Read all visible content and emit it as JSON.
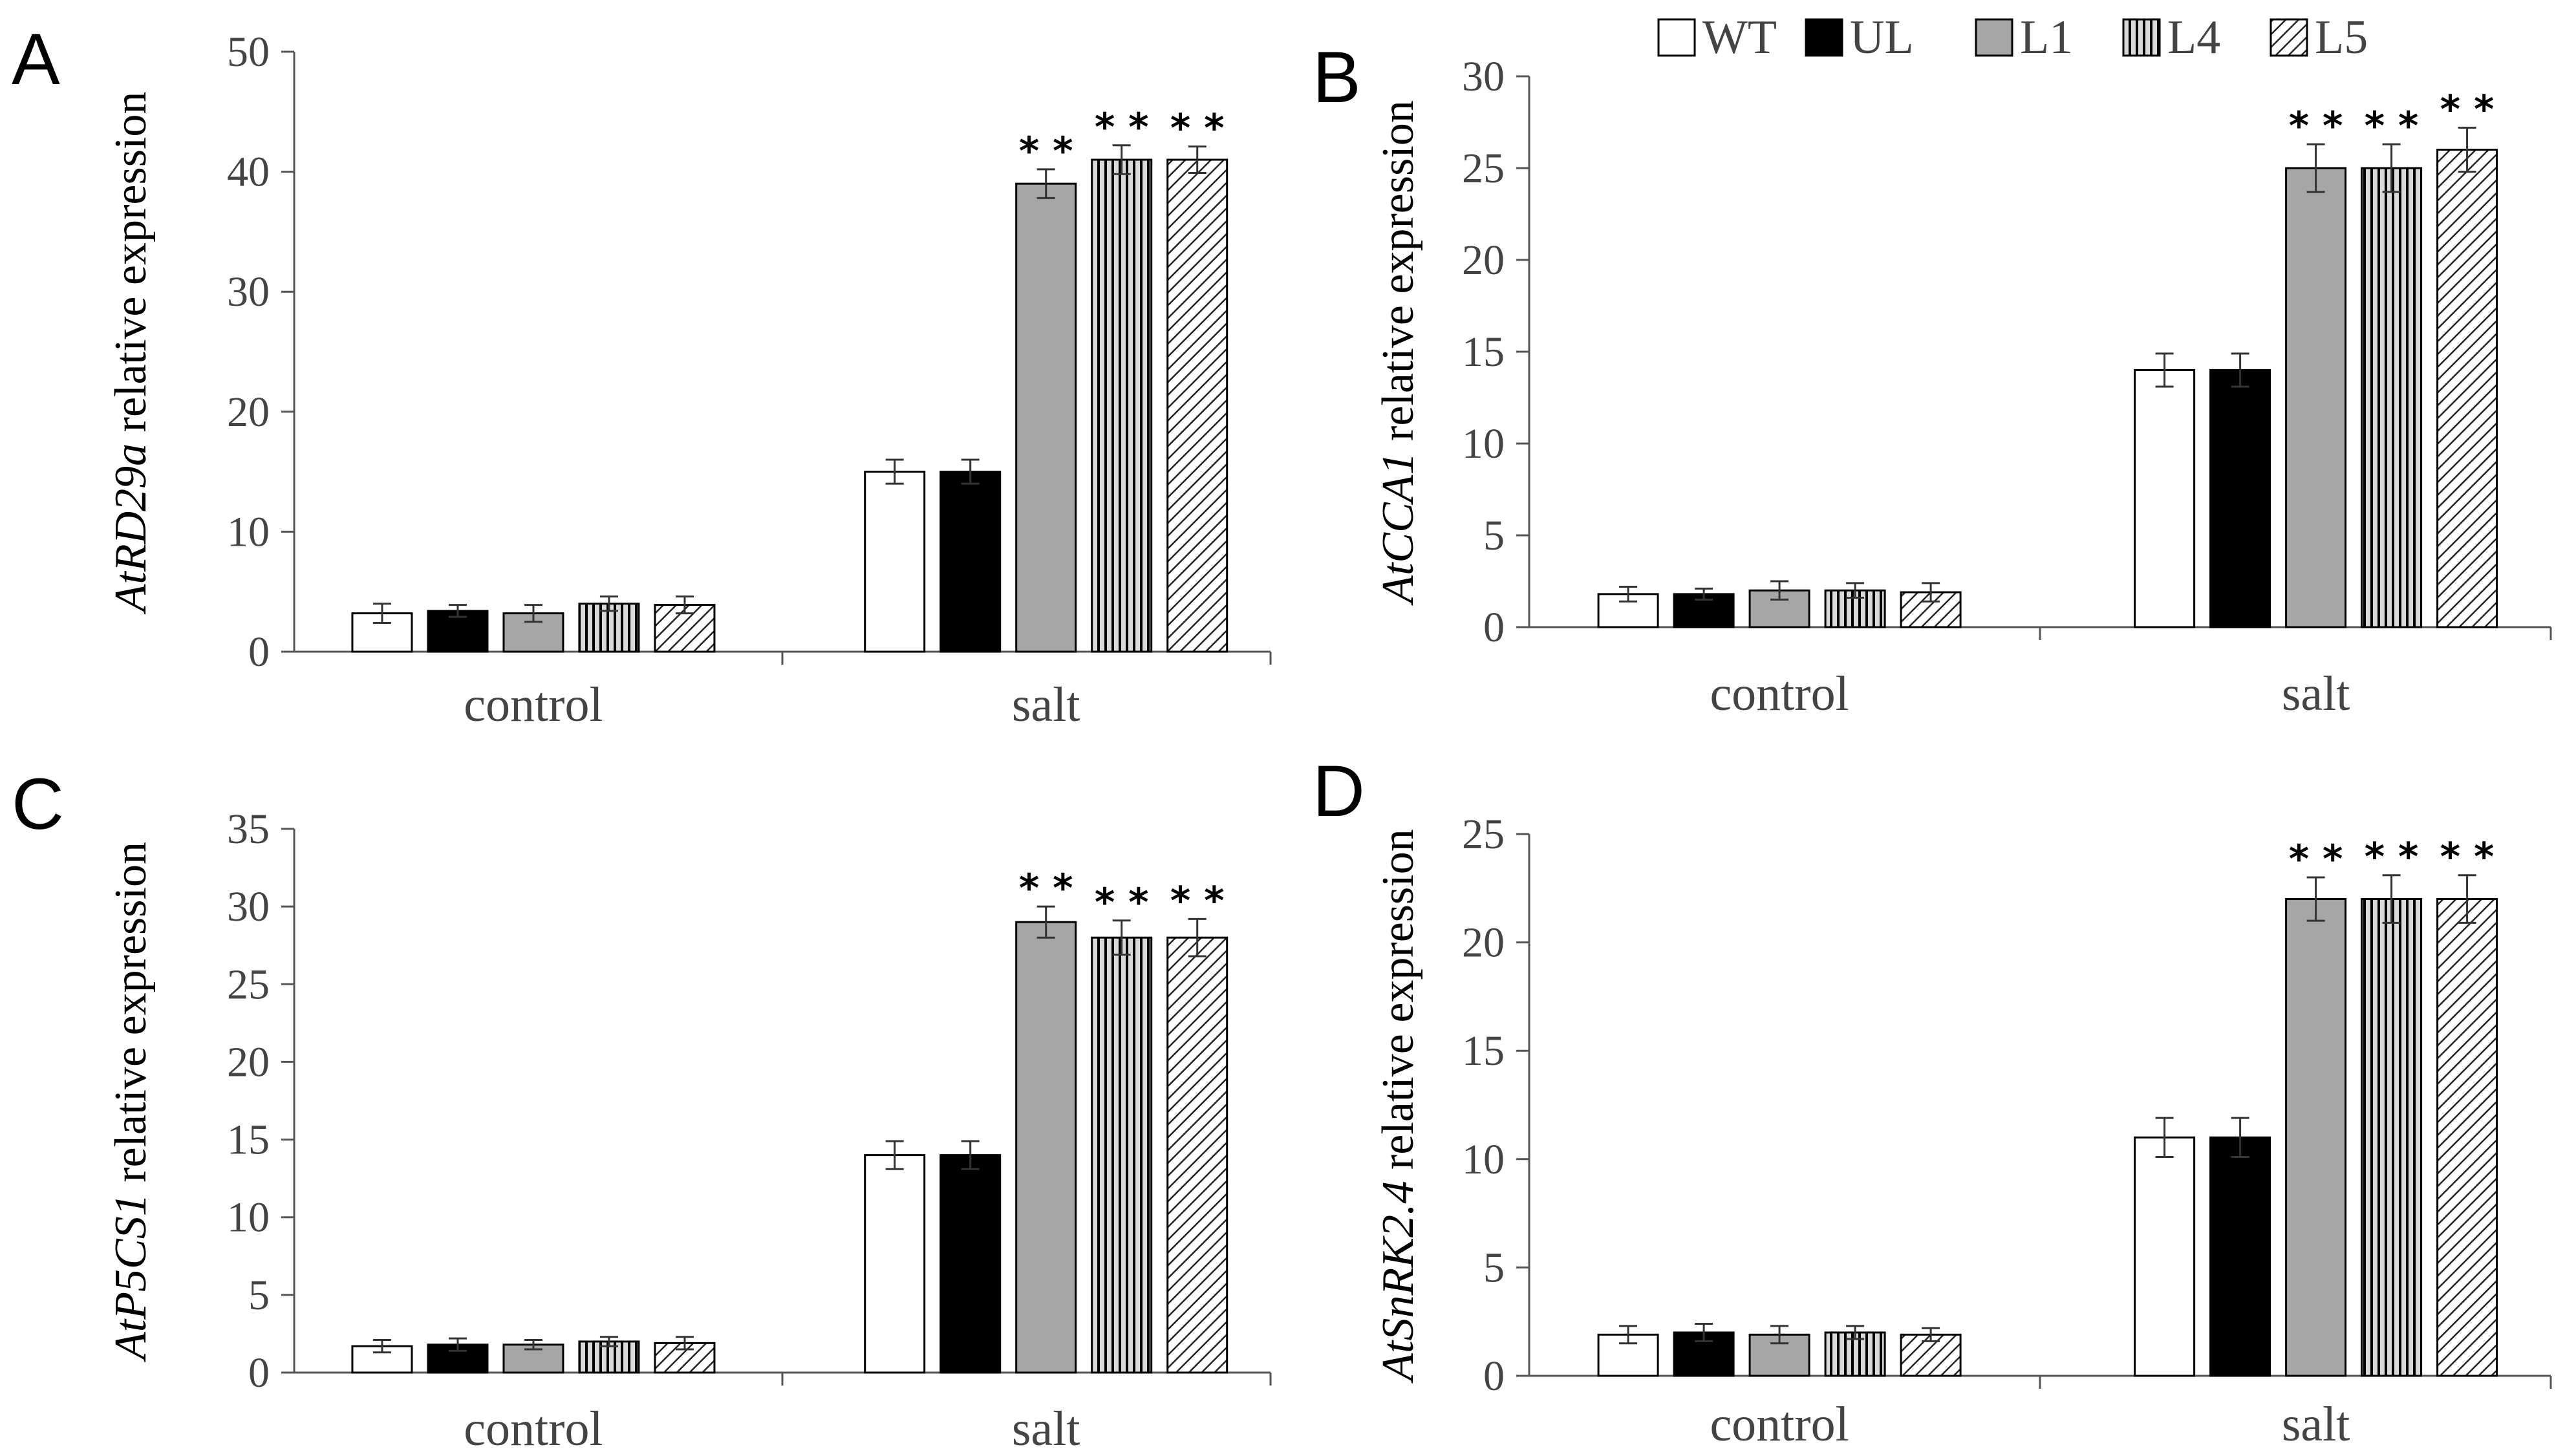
{
  "figure": {
    "legend": [
      {
        "name": "WT",
        "fill": "white"
      },
      {
        "name": "UL",
        "fill": "black"
      },
      {
        "name": "L1",
        "fill": "gray"
      },
      {
        "name": "L4",
        "fill": "vertical-lines"
      },
      {
        "name": "L5",
        "fill": "diagonal-lines"
      }
    ],
    "colors": {
      "white": "#ffffff",
      "black": "#000000",
      "gray": "#a6a6a6",
      "pattern_bg": "#d9d9d9",
      "axis": "#555555",
      "text": "#444444"
    }
  },
  "chart_data": [
    {
      "panel": "A",
      "type": "bar",
      "ylabel_italic": "AtRD29a",
      "ylabel_rest": " relative expression",
      "categories": [
        "control",
        "salt"
      ],
      "ylim": [
        0,
        50
      ],
      "yticks": [
        0,
        10,
        20,
        30,
        40,
        50
      ],
      "series": [
        {
          "name": "WT",
          "values": [
            3.2,
            15
          ],
          "errors": [
            0.8,
            1.0
          ],
          "sig": [
            "",
            ""
          ]
        },
        {
          "name": "UL",
          "values": [
            3.4,
            15
          ],
          "errors": [
            0.5,
            1.0
          ],
          "sig": [
            "",
            ""
          ]
        },
        {
          "name": "L1",
          "values": [
            3.2,
            39
          ],
          "errors": [
            0.7,
            1.2
          ],
          "sig": [
            "",
            "**"
          ]
        },
        {
          "name": "L4",
          "values": [
            4.0,
            41
          ],
          "errors": [
            0.6,
            1.2
          ],
          "sig": [
            "",
            "**"
          ]
        },
        {
          "name": "L5",
          "values": [
            3.9,
            41
          ],
          "errors": [
            0.7,
            1.1
          ],
          "sig": [
            "",
            "**"
          ]
        }
      ]
    },
    {
      "panel": "B",
      "type": "bar",
      "ylabel_italic": "AtCCA1",
      "ylabel_rest": " relative expression",
      "categories": [
        "control",
        "salt"
      ],
      "ylim": [
        0,
        30
      ],
      "yticks": [
        0,
        5,
        10,
        15,
        20,
        25,
        30
      ],
      "series": [
        {
          "name": "WT",
          "values": [
            1.8,
            14
          ],
          "errors": [
            0.4,
            0.9
          ],
          "sig": [
            "",
            ""
          ]
        },
        {
          "name": "UL",
          "values": [
            1.8,
            14
          ],
          "errors": [
            0.3,
            0.9
          ],
          "sig": [
            "",
            ""
          ]
        },
        {
          "name": "L1",
          "values": [
            2.0,
            25
          ],
          "errors": [
            0.5,
            1.3
          ],
          "sig": [
            "",
            "**"
          ]
        },
        {
          "name": "L4",
          "values": [
            2.0,
            25
          ],
          "errors": [
            0.4,
            1.3
          ],
          "sig": [
            "",
            "**"
          ]
        },
        {
          "name": "L5",
          "values": [
            1.9,
            26
          ],
          "errors": [
            0.5,
            1.2
          ],
          "sig": [
            "",
            "**"
          ]
        }
      ]
    },
    {
      "panel": "C",
      "type": "bar",
      "ylabel_italic": "AtP5CS1",
      "ylabel_rest": " relative expression",
      "categories": [
        "control",
        "salt"
      ],
      "ylim": [
        0,
        35
      ],
      "yticks": [
        0,
        5,
        10,
        15,
        20,
        25,
        30,
        35
      ],
      "series": [
        {
          "name": "WT",
          "values": [
            1.7,
            14
          ],
          "errors": [
            0.4,
            0.9
          ],
          "sig": [
            "",
            ""
          ]
        },
        {
          "name": "UL",
          "values": [
            1.8,
            14
          ],
          "errors": [
            0.4,
            0.9
          ],
          "sig": [
            "",
            ""
          ]
        },
        {
          "name": "L1",
          "values": [
            1.8,
            29
          ],
          "errors": [
            0.3,
            1.0
          ],
          "sig": [
            "",
            "**"
          ]
        },
        {
          "name": "L4",
          "values": [
            2.0,
            28
          ],
          "errors": [
            0.3,
            1.1
          ],
          "sig": [
            "",
            "**"
          ]
        },
        {
          "name": "L5",
          "values": [
            1.9,
            28
          ],
          "errors": [
            0.4,
            1.2
          ],
          "sig": [
            "",
            "**"
          ]
        }
      ]
    },
    {
      "panel": "D",
      "type": "bar",
      "ylabel_italic": "AtSnRK2.4",
      "ylabel_rest": " relative expression",
      "categories": [
        "control",
        "salt"
      ],
      "ylim": [
        0,
        25
      ],
      "yticks": [
        0,
        5,
        10,
        15,
        20,
        25
      ],
      "series": [
        {
          "name": "WT",
          "values": [
            1.9,
            11
          ],
          "errors": [
            0.4,
            0.9
          ],
          "sig": [
            "",
            ""
          ]
        },
        {
          "name": "UL",
          "values": [
            2.0,
            11
          ],
          "errors": [
            0.4,
            0.9
          ],
          "sig": [
            "",
            ""
          ]
        },
        {
          "name": "L1",
          "values": [
            1.9,
            22
          ],
          "errors": [
            0.4,
            1.0
          ],
          "sig": [
            "",
            "**"
          ]
        },
        {
          "name": "L4",
          "values": [
            2.0,
            22
          ],
          "errors": [
            0.3,
            1.1
          ],
          "sig": [
            "",
            "**"
          ]
        },
        {
          "name": "L5",
          "values": [
            1.9,
            22
          ],
          "errors": [
            0.3,
            1.1
          ],
          "sig": [
            "",
            "**"
          ]
        }
      ]
    }
  ]
}
